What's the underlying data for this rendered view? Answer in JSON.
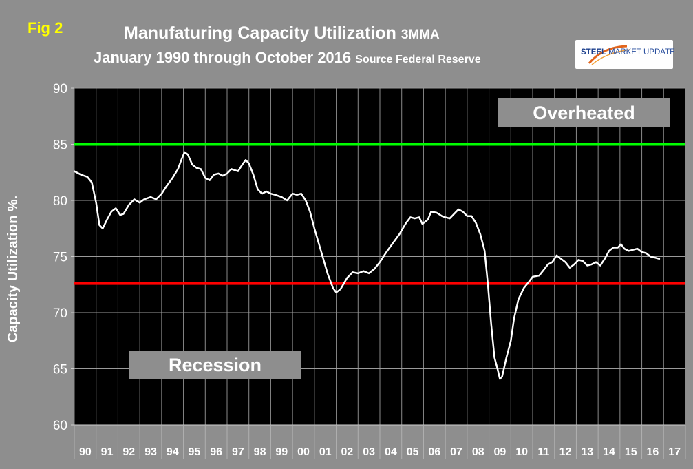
{
  "fig_label": "Fig 2",
  "title_main": "Manufaturing Capacity Utilization",
  "title_suffix": "3MMA",
  "subtitle_main": "January 1990 through October 2016",
  "subtitle_source": "Source Federal Reserve",
  "logo": {
    "bold": "STEEL",
    "light": "MARKET UPDATE"
  },
  "chart_data": {
    "type": "line",
    "ylabel": "Capacity Utilization %.",
    "xlabel": "",
    "ylim": [
      60,
      90
    ],
    "yticks": [
      "60",
      "65",
      "70",
      "75",
      "80",
      "85",
      "90"
    ],
    "x_categories": [
      "90",
      "91",
      "92",
      "93",
      "94",
      "95",
      "96",
      "97",
      "98",
      "99",
      "00",
      "01",
      "02",
      "03",
      "04",
      "05",
      "06",
      "07",
      "08",
      "09",
      "10",
      "11",
      "12",
      "13",
      "14",
      "15",
      "16",
      "17"
    ],
    "grid": true,
    "reference_lines": [
      {
        "label": "Overheated",
        "value": 85,
        "color": "#00ff00"
      },
      {
        "label": "Recession",
        "value": 72.6,
        "color": "#ff0000"
      }
    ],
    "series": [
      {
        "color": "#ffffff",
        "points": [
          [
            1990.0,
            82.6
          ],
          [
            1990.3,
            82.3
          ],
          [
            1990.6,
            82.1
          ],
          [
            1990.8,
            81.6
          ],
          [
            1991.0,
            79.8
          ],
          [
            1991.15,
            77.8
          ],
          [
            1991.3,
            77.5
          ],
          [
            1991.5,
            78.3
          ],
          [
            1991.7,
            79.0
          ],
          [
            1991.9,
            79.3
          ],
          [
            1992.1,
            78.7
          ],
          [
            1992.25,
            78.8
          ],
          [
            1992.5,
            79.6
          ],
          [
            1992.75,
            80.1
          ],
          [
            1993.0,
            79.8
          ],
          [
            1993.2,
            80.1
          ],
          [
            1993.5,
            80.3
          ],
          [
            1993.75,
            80.1
          ],
          [
            1994.0,
            80.6
          ],
          [
            1994.2,
            81.2
          ],
          [
            1994.5,
            82.0
          ],
          [
            1994.75,
            82.8
          ],
          [
            1994.9,
            83.6
          ],
          [
            1995.05,
            84.3
          ],
          [
            1995.2,
            84.1
          ],
          [
            1995.4,
            83.2
          ],
          [
            1995.6,
            82.9
          ],
          [
            1995.8,
            82.8
          ],
          [
            1996.0,
            82.0
          ],
          [
            1996.2,
            81.8
          ],
          [
            1996.4,
            82.3
          ],
          [
            1996.6,
            82.4
          ],
          [
            1996.8,
            82.2
          ],
          [
            1997.0,
            82.4
          ],
          [
            1997.2,
            82.8
          ],
          [
            1997.5,
            82.6
          ],
          [
            1997.7,
            83.2
          ],
          [
            1997.85,
            83.6
          ],
          [
            1998.0,
            83.3
          ],
          [
            1998.2,
            82.3
          ],
          [
            1998.4,
            81.0
          ],
          [
            1998.6,
            80.6
          ],
          [
            1998.8,
            80.8
          ],
          [
            1999.0,
            80.6
          ],
          [
            1999.2,
            80.5
          ],
          [
            1999.5,
            80.3
          ],
          [
            1999.75,
            80.0
          ],
          [
            2000.0,
            80.6
          ],
          [
            2000.2,
            80.5
          ],
          [
            2000.4,
            80.6
          ],
          [
            2000.6,
            80.0
          ],
          [
            2000.8,
            79.0
          ],
          [
            2001.0,
            77.5
          ],
          [
            2001.3,
            75.5
          ],
          [
            2001.6,
            73.5
          ],
          [
            2001.85,
            72.2
          ],
          [
            2002.0,
            71.8
          ],
          [
            2002.2,
            72.1
          ],
          [
            2002.5,
            73.1
          ],
          [
            2002.75,
            73.6
          ],
          [
            2003.0,
            73.5
          ],
          [
            2003.25,
            73.7
          ],
          [
            2003.5,
            73.5
          ],
          [
            2003.75,
            73.9
          ],
          [
            2004.0,
            74.5
          ],
          [
            2004.3,
            75.4
          ],
          [
            2004.6,
            76.2
          ],
          [
            2004.9,
            77.0
          ],
          [
            2005.2,
            78.0
          ],
          [
            2005.4,
            78.5
          ],
          [
            2005.6,
            78.4
          ],
          [
            2005.8,
            78.5
          ],
          [
            2005.95,
            77.9
          ],
          [
            2006.2,
            78.3
          ],
          [
            2006.35,
            79.0
          ],
          [
            2006.6,
            78.9
          ],
          [
            2006.85,
            78.6
          ],
          [
            2007.0,
            78.5
          ],
          [
            2007.2,
            78.4
          ],
          [
            2007.4,
            78.8
          ],
          [
            2007.6,
            79.2
          ],
          [
            2007.8,
            79.0
          ],
          [
            2008.0,
            78.6
          ],
          [
            2008.2,
            78.6
          ],
          [
            2008.4,
            78.0
          ],
          [
            2008.6,
            77.0
          ],
          [
            2008.8,
            75.5
          ],
          [
            2008.95,
            72.5
          ],
          [
            2009.1,
            69.0
          ],
          [
            2009.25,
            66.0
          ],
          [
            2009.4,
            64.9
          ],
          [
            2009.5,
            64.1
          ],
          [
            2009.6,
            64.3
          ],
          [
            2009.8,
            66.0
          ],
          [
            2010.0,
            67.5
          ],
          [
            2010.15,
            69.5
          ],
          [
            2010.35,
            71.2
          ],
          [
            2010.6,
            72.2
          ],
          [
            2010.85,
            72.8
          ],
          [
            2011.0,
            73.2
          ],
          [
            2011.3,
            73.3
          ],
          [
            2011.5,
            73.8
          ],
          [
            2011.7,
            74.3
          ],
          [
            2011.9,
            74.5
          ],
          [
            2012.1,
            75.1
          ],
          [
            2012.3,
            74.8
          ],
          [
            2012.5,
            74.5
          ],
          [
            2012.7,
            74.0
          ],
          [
            2012.9,
            74.3
          ],
          [
            2013.1,
            74.7
          ],
          [
            2013.3,
            74.6
          ],
          [
            2013.5,
            74.2
          ],
          [
            2013.7,
            74.3
          ],
          [
            2013.9,
            74.5
          ],
          [
            2014.1,
            74.2
          ],
          [
            2014.3,
            74.8
          ],
          [
            2014.5,
            75.5
          ],
          [
            2014.7,
            75.8
          ],
          [
            2014.9,
            75.8
          ],
          [
            2015.05,
            76.1
          ],
          [
            2015.2,
            75.7
          ],
          [
            2015.4,
            75.5
          ],
          [
            2015.6,
            75.6
          ],
          [
            2015.8,
            75.7
          ],
          [
            2016.0,
            75.4
          ],
          [
            2016.2,
            75.3
          ],
          [
            2016.4,
            75.0
          ],
          [
            2016.6,
            74.9
          ],
          [
            2016.8,
            74.8
          ]
        ]
      }
    ]
  }
}
